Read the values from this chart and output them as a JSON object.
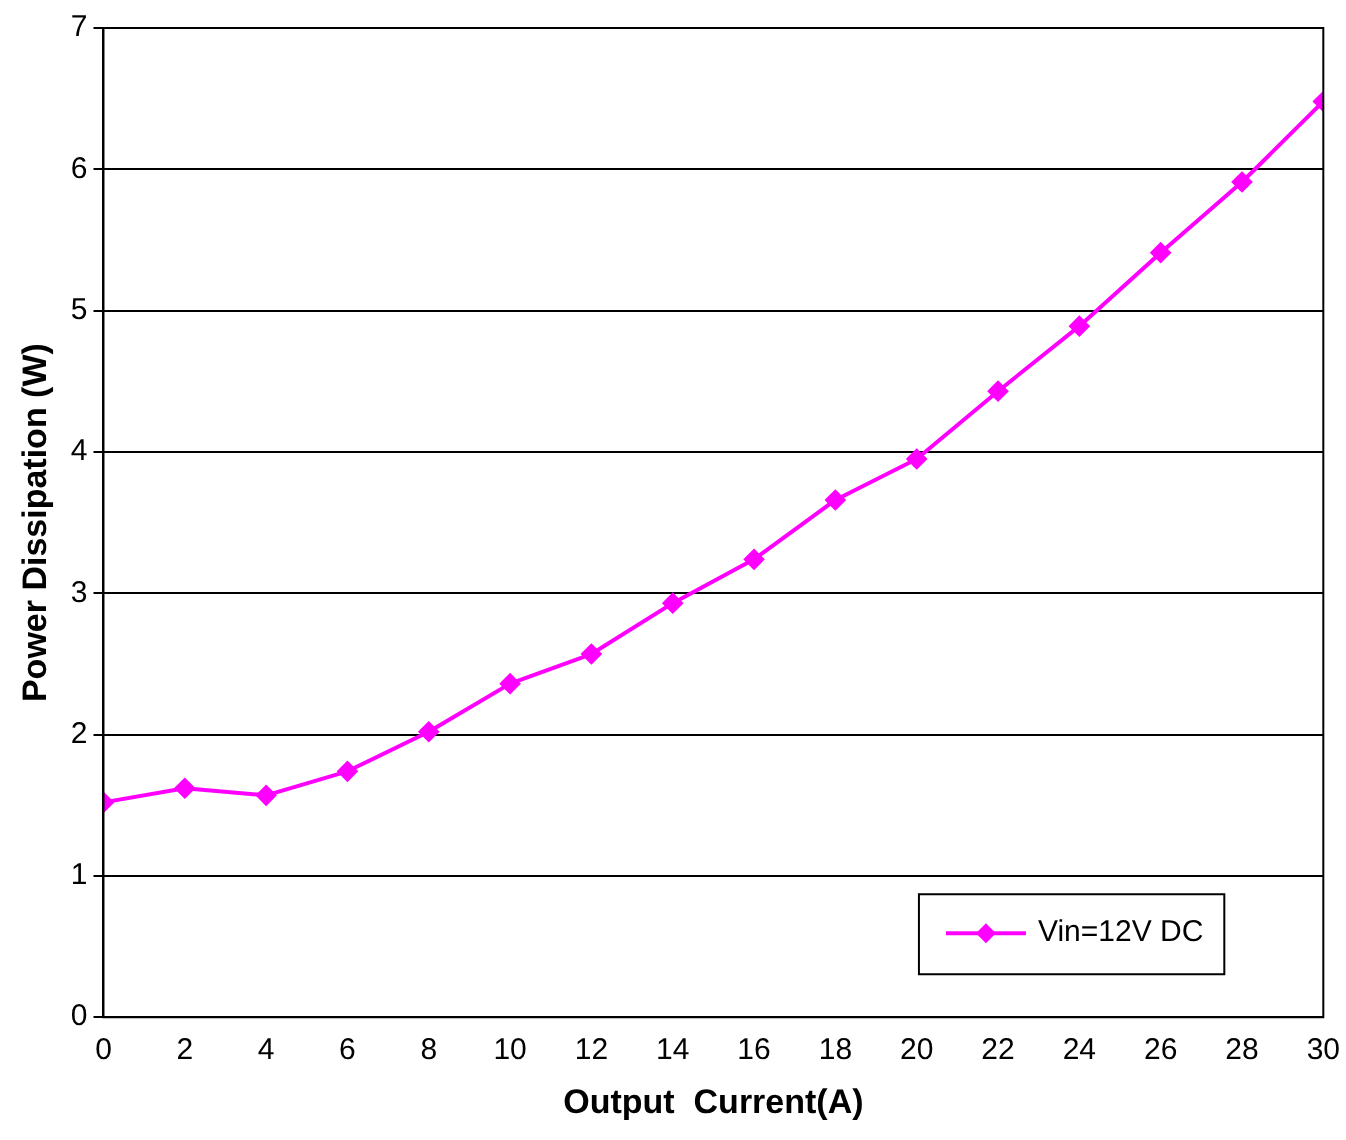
{
  "chart_data": {
    "type": "line",
    "xlabel": "Output  Current(A)",
    "ylabel": "Power Dissipation (W)",
    "x": [
      0,
      2,
      4,
      6,
      8,
      10,
      12,
      14,
      16,
      18,
      20,
      22,
      24,
      26,
      28,
      30
    ],
    "series": [
      {
        "name": "Vin=12V DC",
        "color": "#ff00ff",
        "values": [
          1.52,
          1.62,
          1.57,
          1.74,
          2.02,
          2.36,
          2.57,
          2.93,
          3.24,
          3.66,
          3.95,
          4.43,
          4.89,
          5.41,
          5.91,
          6.48
        ]
      }
    ],
    "xlim": [
      0,
      30
    ],
    "xticks": [
      0,
      2,
      4,
      6,
      8,
      10,
      12,
      14,
      16,
      18,
      20,
      22,
      24,
      26,
      28,
      30
    ],
    "ylim": [
      0,
      7
    ],
    "yticks": [
      0,
      1,
      2,
      3,
      4,
      5,
      6,
      7
    ],
    "grid": "y",
    "legend": "bottom right",
    "marker": "diamond",
    "line_style": "solid"
  }
}
